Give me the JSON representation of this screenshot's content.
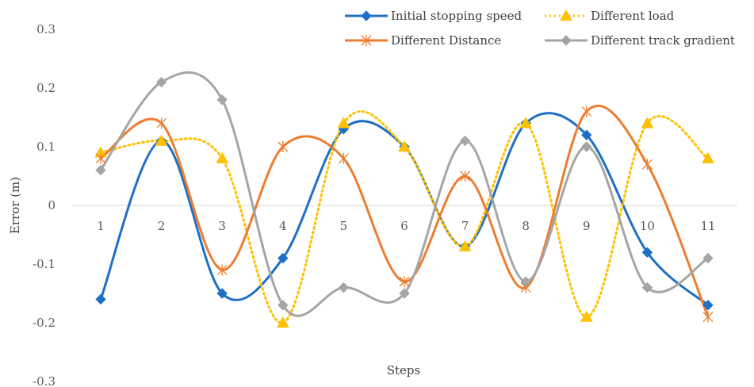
{
  "chart_data": {
    "type": "line",
    "smooth": true,
    "title": "",
    "xlabel": "Steps",
    "ylabel": "Error (m)",
    "categories": [
      "1",
      "2",
      "3",
      "4",
      "5",
      "6",
      "7",
      "8",
      "9",
      "10",
      "11"
    ],
    "yticks": [
      "-0.3",
      "-0.2",
      "-0.1",
      "0",
      "0.1",
      "0.2",
      "0.3"
    ],
    "ylim": [
      -0.3,
      0.3
    ],
    "grid": false,
    "legend_position": "top-right",
    "series": [
      {
        "name": "Initial stopping speed",
        "color": "#1f6fc5",
        "marker": "diamond",
        "dash": false,
        "values": [
          -0.16,
          0.11,
          -0.15,
          -0.09,
          0.13,
          0.1,
          -0.07,
          0.14,
          0.12,
          -0.08,
          -0.17
        ]
      },
      {
        "name": "Different load",
        "color": "#ffc000",
        "marker": "triangle",
        "dash": true,
        "values": [
          0.09,
          0.11,
          0.08,
          -0.2,
          0.14,
          0.1,
          -0.07,
          0.14,
          -0.19,
          0.14,
          0.08
        ]
      },
      {
        "name": "Different Distance",
        "color": "#ed7d31",
        "marker": "star",
        "dash": false,
        "values": [
          0.08,
          0.14,
          -0.11,
          0.1,
          0.08,
          -0.13,
          0.05,
          -0.14,
          0.16,
          0.07,
          -0.19
        ]
      },
      {
        "name": "Different track gradient",
        "color": "#a5a5a5",
        "marker": "diamond",
        "dash": false,
        "values": [
          0.06,
          0.21,
          0.18,
          -0.17,
          -0.14,
          -0.15,
          0.11,
          -0.13,
          0.1,
          -0.14,
          -0.09
        ]
      }
    ]
  }
}
